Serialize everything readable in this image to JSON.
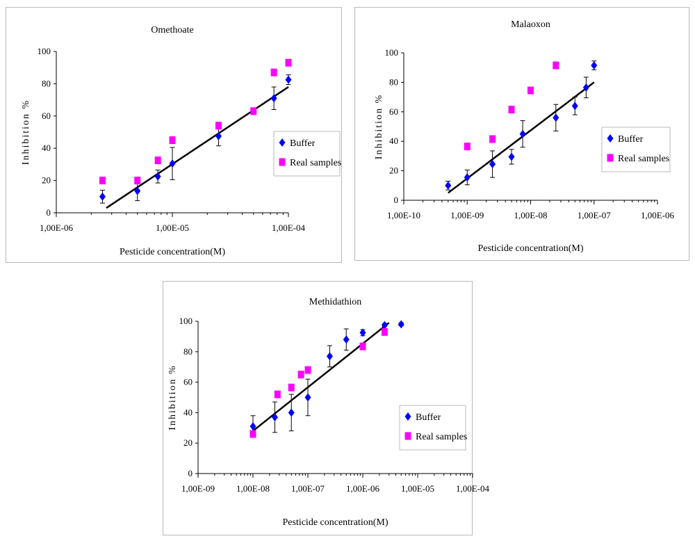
{
  "chart_data": [
    {
      "id": "omethoate",
      "type": "scatter",
      "title": "Omethoate",
      "xlabel": "Pesticide concentration(M)",
      "ylabel": "Inhibition %",
      "xscale": "log",
      "xlim": [
        1e-06,
        0.0001
      ],
      "ylim": [
        0,
        100
      ],
      "x_ticks": [
        "1,00E-06",
        "1,00E-05",
        "1,00E-04"
      ],
      "y_ticks": [
        "0",
        "20",
        "40",
        "60",
        "80",
        "100"
      ],
      "legend_position": "right",
      "fit_line": {
        "x": [
          2.7e-06,
          0.0001
        ],
        "y": [
          3,
          78
        ]
      },
      "series": [
        {
          "name": "Buffer",
          "marker": "diamond",
          "color": "#0000ff",
          "x": [
            2.5e-06,
            5e-06,
            7.5e-06,
            1e-05,
            2.5e-05,
            7.5e-05,
            0.0001
          ],
          "y": [
            10,
            13.5,
            22.5,
            30.5,
            47.5,
            71,
            82.5
          ],
          "err": [
            4,
            6,
            4,
            10,
            6,
            7,
            3
          ]
        },
        {
          "name": "Real samples",
          "marker": "square",
          "color": "#ff00ff",
          "x": [
            2.5e-06,
            5e-06,
            7.5e-06,
            1e-05,
            2.5e-05,
            5e-05,
            7.5e-05,
            0.0001
          ],
          "y": [
            20,
            20,
            32.5,
            45,
            54,
            63,
            87,
            93
          ]
        }
      ]
    },
    {
      "id": "malaoxon",
      "type": "scatter",
      "title": "Malaoxon",
      "xlabel": "Pesticide concentration(M)",
      "ylabel": "Inhibition %",
      "xscale": "log",
      "xlim": [
        1e-10,
        1e-06
      ],
      "ylim": [
        0,
        100
      ],
      "x_ticks": [
        "1,00E-10",
        "1,00E-09",
        "1,00E-08",
        "1,00E-07",
        "1,00E-06"
      ],
      "y_ticks": [
        "0",
        "20",
        "40",
        "60",
        "80",
        "100"
      ],
      "legend_position": "right",
      "fit_line": {
        "x": [
          5e-10,
          1e-07
        ],
        "y": [
          5,
          80
        ]
      },
      "series": [
        {
          "name": "Buffer",
          "marker": "diamond",
          "color": "#0000ff",
          "x": [
            5e-10,
            1e-09,
            2.5e-09,
            5e-09,
            7.5e-09,
            2.5e-08,
            5e-08,
            7.5e-08,
            1e-07
          ],
          "y": [
            10,
            15.5,
            24.5,
            29.5,
            45,
            56,
            64,
            76.5,
            91.5
          ],
          "err": [
            3,
            5,
            9,
            5,
            9,
            9,
            6,
            7,
            3
          ]
        },
        {
          "name": "Real samples",
          "marker": "square",
          "color": "#ff00ff",
          "x": [
            1e-09,
            2.5e-09,
            5e-09,
            1e-08,
            2.5e-08
          ],
          "y": [
            36.5,
            41.5,
            61.5,
            74.5,
            91.5
          ]
        }
      ]
    },
    {
      "id": "methidathion",
      "type": "scatter",
      "title": "Methidathion",
      "xlabel": "Pesticide concentration(M)",
      "ylabel": "Inhibition %",
      "xscale": "log",
      "xlim": [
        1e-09,
        0.0001
      ],
      "ylim": [
        0,
        100
      ],
      "x_ticks": [
        "1,00E-09",
        "1,00E-08",
        "1,00E-07",
        "1,00E-06",
        "1,00E-05",
        "1,00E-04"
      ],
      "y_ticks": [
        "0",
        "20",
        "40",
        "60",
        "80",
        "100"
      ],
      "legend_position": "right",
      "fit_line": {
        "x": [
          1e-08,
          3e-06
        ],
        "y": [
          28,
          99
        ]
      },
      "series": [
        {
          "name": "Buffer",
          "marker": "diamond",
          "color": "#0000ff",
          "x": [
            1e-08,
            2.5e-08,
            5e-08,
            1e-07,
            2.5e-07,
            5e-07,
            1e-06,
            2.5e-06,
            5e-06
          ],
          "y": [
            31,
            37,
            40,
            50,
            77,
            88,
            92.5,
            97.5,
            98
          ],
          "err": [
            7,
            10,
            12,
            12,
            7,
            7,
            2,
            1,
            1
          ]
        },
        {
          "name": "Real samples",
          "marker": "square",
          "color": "#ff00ff",
          "x": [
            1e-08,
            2.8e-08,
            5e-08,
            7.5e-08,
            1e-07,
            1e-06,
            2.5e-06
          ],
          "y": [
            26,
            52,
            56.5,
            65,
            68,
            83.5,
            93
          ]
        }
      ]
    }
  ]
}
